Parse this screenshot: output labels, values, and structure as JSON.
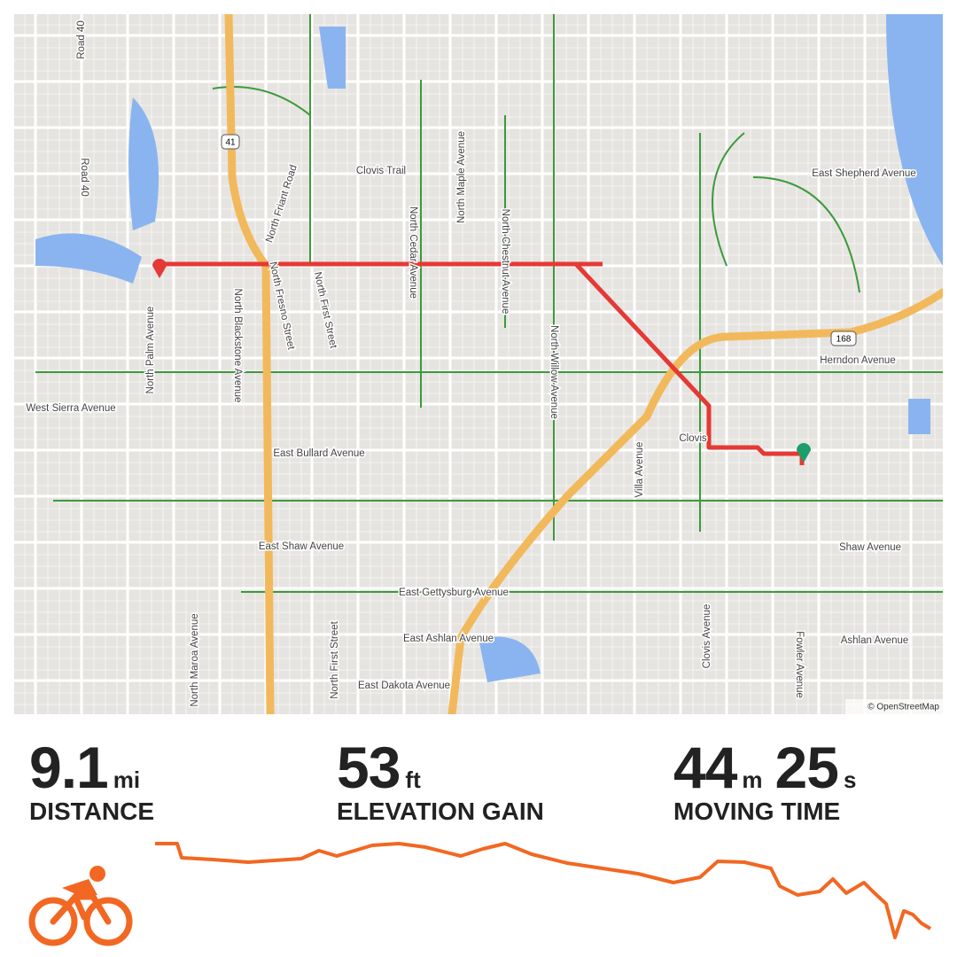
{
  "map": {
    "labels": [
      "Road 40",
      "Road 40",
      "Clovis Trail",
      "East Shepherd Avenue",
      "North Friant Road",
      "North Cedar Avenue",
      "North Maple Avenue",
      "North Chestnut Avenue",
      "North Palm Avenue",
      "North Blackstone Avenue",
      "North Fresno Street",
      "North First Street",
      "North Willow Avenue",
      "Herndon Avenue",
      "West Sierra Avenue",
      "Clovis",
      "Villa Avenue",
      "East Bullard Avenue",
      "East Shaw Avenue",
      "Shaw Avenue",
      "East Gettysburg Avenue",
      "East Ashlan Avenue",
      "Ashlan Avenue",
      "East Dakota Avenue",
      "North Maroa Avenue",
      "North First Street",
      "Clovis Avenue",
      "Fowler Avenue"
    ],
    "shields": [
      "41",
      "168"
    ],
    "attribution": "© OpenStreetMap"
  },
  "stats": [
    {
      "value": 9.1,
      "unit": "mi",
      "label": "DISTANCE"
    },
    {
      "value": 53,
      "unit": "ft",
      "label": "ELEVATION GAIN"
    },
    {
      "minutes": 44,
      "minutes_unit": "m",
      "seconds": 25,
      "seconds_unit": "s",
      "label": "MOVING TIME"
    }
  ]
}
